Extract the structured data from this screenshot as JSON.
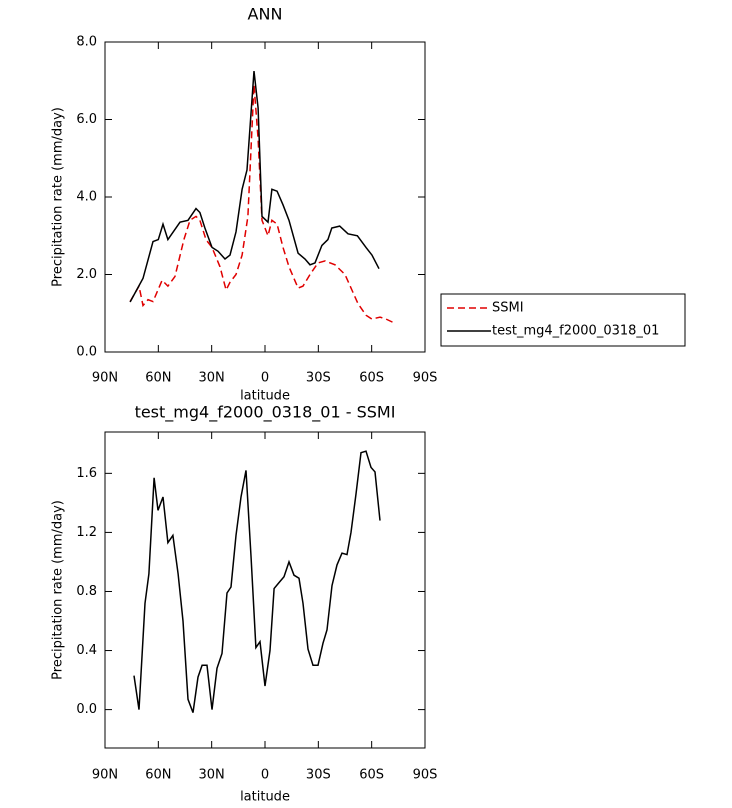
{
  "chart_data": [
    {
      "type": "line",
      "title": "ANN",
      "xlabel": "latitude",
      "ylabel": "Precipitation rate (mm/day)",
      "xlim": [
        90,
        -90
      ],
      "xticks": [
        {
          "value": 90,
          "label": "90N"
        },
        {
          "value": 60,
          "label": "60N"
        },
        {
          "value": 30,
          "label": "30N"
        },
        0,
        {
          "value": -30,
          "label": "30S"
        },
        {
          "value": -60,
          "label": "60S"
        },
        {
          "value": -90,
          "label": "90S"
        }
      ],
      "ylim": [
        0,
        8
      ],
      "yticks": [
        {
          "value": 0,
          "label": "0.0"
        },
        {
          "value": 2,
          "label": "2.0"
        },
        {
          "value": 4,
          "label": "4.0"
        },
        {
          "value": 6,
          "label": "6.0"
        },
        {
          "value": 8,
          "label": "8.0"
        }
      ],
      "series": [
        {
          "name": "SSMI",
          "color": "#e00000",
          "line_style": "dashed",
          "x": [
            75.9,
            70.9,
            68.6,
            65.8,
            63.0,
            57.9,
            54.6,
            50.6,
            45.6,
            42.2,
            38.8,
            36.6,
            33.2,
            29.8,
            25.3,
            21.9,
            19.7,
            16.3,
            12.9,
            9.6,
            6.2,
            3.9,
            1.7,
            -1.7,
            -3.9,
            -6.8,
            -10.1,
            -13.5,
            -18.6,
            -21.4,
            -25.3,
            -29.8,
            -33.8,
            -39.4,
            -45.0,
            -48.9,
            -52.3,
            -56.8,
            -60.2,
            -64.7,
            -68.1,
            -72.6
          ],
          "values": [
            1.3,
            1.7,
            1.2,
            1.35,
            1.3,
            1.85,
            1.7,
            1.95,
            2.9,
            3.4,
            3.5,
            3.4,
            2.9,
            2.7,
            2.2,
            1.6,
            1.8,
            2.0,
            2.5,
            3.5,
            6.9,
            5.5,
            3.4,
            3.0,
            3.4,
            3.3,
            2.7,
            2.2,
            1.65,
            1.7,
            2.0,
            2.3,
            2.35,
            2.25,
            2.0,
            1.6,
            1.25,
            0.95,
            0.85,
            0.9,
            0.85,
            0.75
          ]
        },
        {
          "name": "test_mg4_f2000_0318_01",
          "color": "#000000",
          "line_style": "solid",
          "x": [
            75.9,
            68.6,
            63.0,
            60.0,
            57.4,
            54.6,
            47.8,
            43.3,
            38.8,
            36.6,
            33.8,
            29.8,
            26.4,
            22.5,
            19.7,
            16.3,
            12.9,
            10.1,
            6.2,
            3.9,
            1.7,
            -1.7,
            -3.9,
            -6.8,
            -10.1,
            -13.5,
            -18.6,
            -22.5,
            -25.3,
            -28.1,
            -32.0,
            -35.4,
            -37.6,
            -42.0,
            -46.7,
            -52.0,
            -56.8,
            -60.2,
            -64.1
          ],
          "values": [
            1.29,
            1.9,
            2.85,
            2.9,
            3.3,
            2.9,
            3.35,
            3.4,
            3.7,
            3.6,
            3.2,
            2.7,
            2.6,
            2.4,
            2.5,
            3.1,
            4.2,
            4.7,
            7.25,
            6.3,
            3.5,
            3.35,
            4.2,
            4.15,
            3.8,
            3.4,
            2.55,
            2.4,
            2.25,
            2.3,
            2.75,
            2.9,
            3.2,
            3.25,
            3.05,
            3.0,
            2.7,
            2.5,
            2.15
          ]
        }
      ]
    },
    {
      "type": "line",
      "title": "test_mg4_f2000_0318_01 - SSMI",
      "xlabel": "latitude",
      "ylabel": "Precipitation rate (mm/day)",
      "xlim": [
        90,
        -90
      ],
      "xticks": [
        {
          "value": 90,
          "label": "90N"
        },
        {
          "value": 60,
          "label": "60N"
        },
        {
          "value": 30,
          "label": "30N"
        },
        0,
        {
          "value": -30,
          "label": "30S"
        },
        {
          "value": -60,
          "label": "60S"
        },
        {
          "value": -90,
          "label": "90S"
        }
      ],
      "ylim": [
        -0.26,
        1.88
      ],
      "yticks": [
        {
          "value": 0,
          "label": "0.0"
        },
        0.4,
        0.8,
        1.2,
        1.6
      ],
      "series": [
        {
          "color": "#000000",
          "line_style": "solid",
          "x": [
            73.7,
            70.9,
            67.5,
            65.3,
            62.4,
            60.2,
            57.4,
            54.6,
            51.8,
            48.9,
            46.1,
            43.3,
            40.5,
            37.7,
            35.4,
            32.6,
            29.8,
            27.0,
            24.2,
            21.4,
            19.1,
            16.3,
            13.5,
            10.7,
            7.9,
            5.1,
            2.8,
            0,
            -2.8,
            -5.1,
            -7.9,
            -10.7,
            -13.5,
            -16.3,
            -19.1,
            -21.4,
            -24.2,
            -27.0,
            -29.8,
            -32.6,
            -34.9,
            -37.7,
            -40.5,
            -43.3,
            -46.1,
            -48.4,
            -51.2,
            -54.0,
            -56.8,
            -59.6,
            -61.9,
            -64.7
          ],
          "values": [
            0.23,
            0.0,
            0.72,
            0.92,
            1.57,
            1.35,
            1.44,
            1.13,
            1.18,
            0.92,
            0.6,
            0.07,
            -0.02,
            0.22,
            0.3,
            0.3,
            0.0,
            0.28,
            0.38,
            0.79,
            0.83,
            1.18,
            1.44,
            1.62,
            1.04,
            0.42,
            0.46,
            0.16,
            0.4,
            0.82,
            0.86,
            0.9,
            1.0,
            0.91,
            0.89,
            0.72,
            0.41,
            0.3,
            0.3,
            0.45,
            0.54,
            0.84,
            0.98,
            1.06,
            1.05,
            1.2,
            1.46,
            1.74,
            1.75,
            1.64,
            1.61,
            1.28
          ]
        }
      ]
    }
  ]
}
